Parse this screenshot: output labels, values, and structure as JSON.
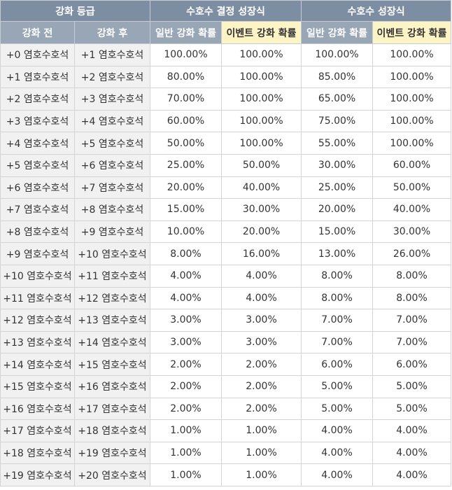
{
  "header": {
    "groups": [
      "강화 등급",
      "수호수 결정 성장식",
      "수호수 성장식"
    ],
    "columns": [
      "강화 전",
      "강화 후",
      "일반 강화 확률",
      "이벤트 강화 확률",
      "일반 강화 확률",
      "이벤트 강화 확률"
    ]
  },
  "rows": [
    [
      "+0 염호수호석",
      "+1 염호수호석",
      "100.00%",
      "100.00%",
      "100.00%",
      "100.00%"
    ],
    [
      "+1 염호수호석",
      "+2 염호수호석",
      "80.00%",
      "100.00%",
      "85.00%",
      "100.00%"
    ],
    [
      "+2 염호수호석",
      "+3 염호수호석",
      "70.00%",
      "100.00%",
      "65.00%",
      "100.00%"
    ],
    [
      "+3 염호수호석",
      "+4 염호수호석",
      "60.00%",
      "100.00%",
      "75.00%",
      "100.00%"
    ],
    [
      "+4 염호수호석",
      "+5 염호수호석",
      "50.00%",
      "100.00%",
      "55.00%",
      "100.00%"
    ],
    [
      "+5 염호수호석",
      "+6 염호수호석",
      "25.00%",
      "50.00%",
      "30.00%",
      "60.00%"
    ],
    [
      "+6 염호수호석",
      "+7 염호수호석",
      "20.00%",
      "40.00%",
      "25.00%",
      "50.00%"
    ],
    [
      "+7 염호수호석",
      "+8 염호수호석",
      "15.00%",
      "30.00%",
      "20.00%",
      "40.00%"
    ],
    [
      "+8 염호수호석",
      "+9 염호수호석",
      "10.00%",
      "20.00%",
      "15.00%",
      "30.00%"
    ],
    [
      "+9 염호수호석",
      "+10 염호수호석",
      "8.00%",
      "16.00%",
      "13.00%",
      "26.00%"
    ],
    [
      "+10 염호수호석",
      "+11 염호수호석",
      "4.00%",
      "4.00%",
      "8.00%",
      "8.00%"
    ],
    [
      "+11 염호수호석",
      "+12 염호수호석",
      "4.00%",
      "4.00%",
      "8.00%",
      "8.00%"
    ],
    [
      "+12 염호수호석",
      "+13 염호수호석",
      "3.00%",
      "3.00%",
      "7.00%",
      "7.00%"
    ],
    [
      "+13 염호수호석",
      "+14 염호수호석",
      "3.00%",
      "3.00%",
      "7.00%",
      "7.00%"
    ],
    [
      "+14 염호수호석",
      "+15 염호수호석",
      "2.00%",
      "2.00%",
      "6.00%",
      "6.00%"
    ],
    [
      "+15 염호수호석",
      "+16 염호수호석",
      "2.00%",
      "2.00%",
      "5.00%",
      "5.00%"
    ],
    [
      "+16 염호수호석",
      "+17 염호수호석",
      "2.00%",
      "2.00%",
      "5.00%",
      "5.00%"
    ],
    [
      "+17 염호수호석",
      "+18 염호수호석",
      "1.00%",
      "1.00%",
      "4.00%",
      "4.00%"
    ],
    [
      "+18 염호수호석",
      "+19 염호수호석",
      "1.00%",
      "1.00%",
      "4.00%",
      "4.00%"
    ],
    [
      "+19 염호수호석",
      "+20 염호수호석",
      "1.00%",
      "1.00%",
      "4.00%",
      "4.00%"
    ]
  ]
}
